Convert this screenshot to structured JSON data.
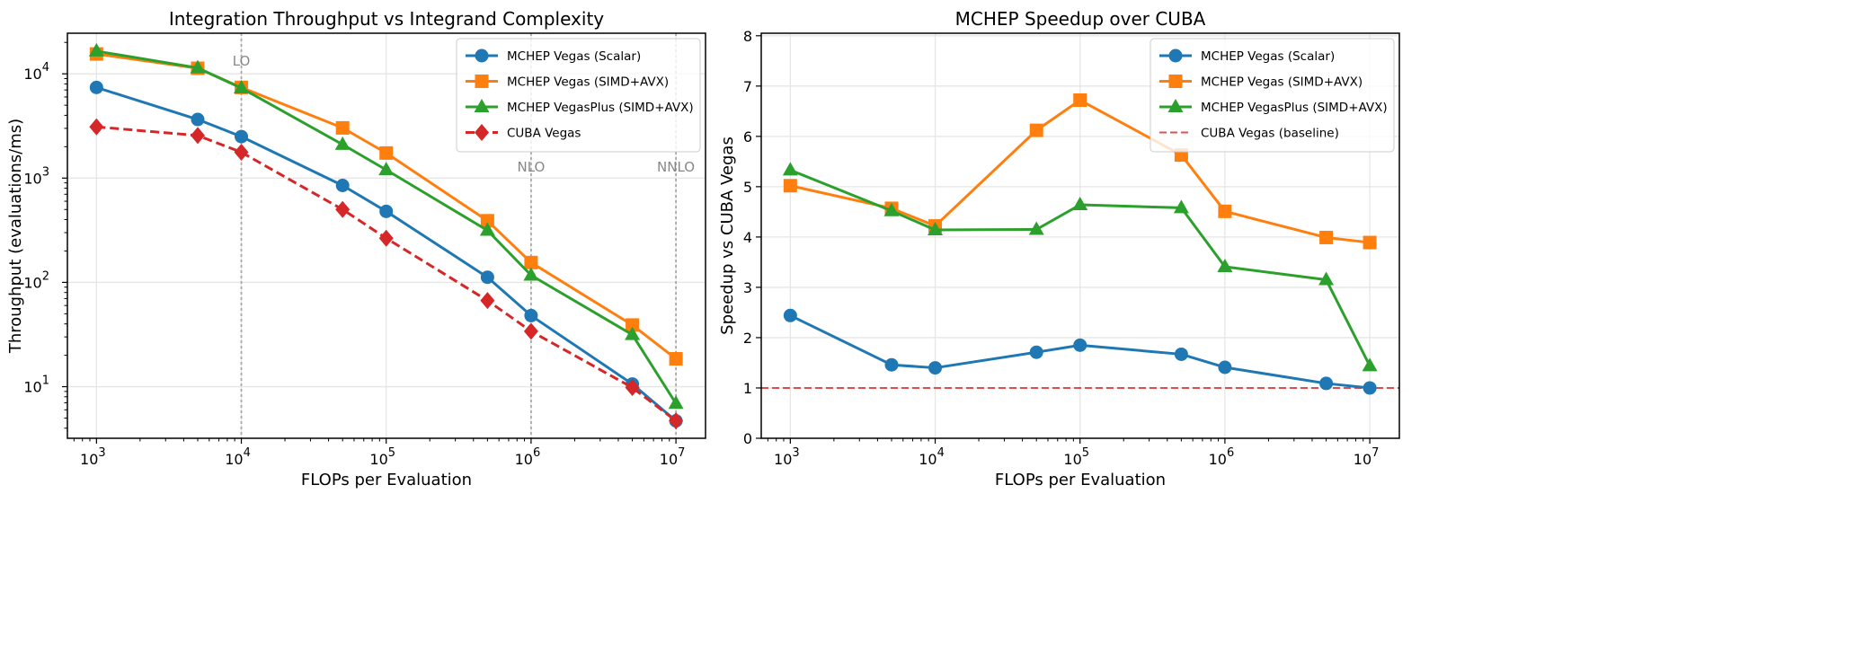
{
  "chart_data": [
    {
      "type": "line",
      "title": "Integration Throughput vs Integrand Complexity",
      "xlabel": "FLOPs per Evaluation",
      "ylabel": "Throughput (evaluations/ms)",
      "xscale": "log",
      "yscale": "log",
      "xlim": [
        630,
        16000000
      ],
      "ylim": [
        3.2,
        24500
      ],
      "xticks": [
        1000,
        10000,
        100000,
        1000000,
        10000000
      ],
      "xtick_labels": [
        [
          "10",
          "3"
        ],
        [
          "10",
          "4"
        ],
        [
          "10",
          "5"
        ],
        [
          "10",
          "6"
        ],
        [
          "10",
          "7"
        ]
      ],
      "yticks": [
        10,
        100,
        1000,
        10000
      ],
      "ytick_labels": [
        [
          "10",
          "1"
        ],
        [
          "10",
          "2"
        ],
        [
          "10",
          "3"
        ],
        [
          "10",
          "4"
        ]
      ],
      "grid": true,
      "legend": "top-right",
      "x": [
        1000,
        5000,
        10000,
        50000,
        100000,
        500000,
        1000000,
        5000000,
        10000000
      ],
      "series": [
        {
          "name": "MCHEP Vegas (Scalar)",
          "color": "#1f77b4",
          "marker": "circle",
          "dash": false,
          "values": [
            7400,
            3650,
            2500,
            850,
            480,
            112,
            48,
            10.6,
            4.7
          ]
        },
        {
          "name": "MCHEP Vegas (SIMD+AVX)",
          "color": "#ff7f0e",
          "marker": "square",
          "dash": false,
          "values": [
            15500,
            11300,
            7400,
            3030,
            1740,
            390,
            155,
            39,
            18.5
          ]
        },
        {
          "name": "MCHEP VegasPlus (SIMD+AVX)",
          "color": "#2ca02c",
          "marker": "triangle",
          "dash": false,
          "values": [
            16500,
            11400,
            7300,
            2100,
            1200,
            315,
            117,
            31.5,
            6.9
          ]
        },
        {
          "name": "CUBA Vegas",
          "color": "#d62728",
          "marker": "diamond",
          "dash": true,
          "values": [
            3100,
            2560,
            1770,
            500,
            265,
            67,
            34,
            9.8,
            4.7
          ]
        }
      ],
      "annotations": [
        {
          "text": "LO",
          "x": 10000
        },
        {
          "text": "NLO",
          "x": 1000000
        },
        {
          "text": "NNLO",
          "x": 10000000
        }
      ]
    },
    {
      "type": "line",
      "title": "MCHEP Speedup over CUBA",
      "xlabel": "FLOPs per Evaluation",
      "ylabel": "Speedup vs CUBA Vegas",
      "xscale": "log",
      "yscale": "linear",
      "xlim": [
        630,
        16000000
      ],
      "ylim": [
        0,
        8.05
      ],
      "xticks": [
        1000,
        10000,
        100000,
        1000000,
        10000000
      ],
      "xtick_labels": [
        [
          "10",
          "3"
        ],
        [
          "10",
          "4"
        ],
        [
          "10",
          "5"
        ],
        [
          "10",
          "6"
        ],
        [
          "10",
          "7"
        ]
      ],
      "yticks": [
        0,
        1,
        2,
        3,
        4,
        5,
        6,
        7,
        8
      ],
      "ytick_labels": [
        [
          "0"
        ],
        [
          "1"
        ],
        [
          "2"
        ],
        [
          "3"
        ],
        [
          "4"
        ],
        [
          "5"
        ],
        [
          "6"
        ],
        [
          "7"
        ],
        [
          "8"
        ]
      ],
      "grid": true,
      "legend": "top-right",
      "x": [
        1000,
        5000,
        10000,
        50000,
        100000,
        500000,
        1000000,
        5000000,
        10000000
      ],
      "series": [
        {
          "name": "MCHEP Vegas (Scalar)",
          "color": "#1f77b4",
          "marker": "circle",
          "dash": false,
          "values": [
            2.44,
            1.46,
            1.4,
            1.71,
            1.85,
            1.67,
            1.41,
            1.09,
            1.0
          ]
        },
        {
          "name": "MCHEP Vegas (SIMD+AVX)",
          "color": "#ff7f0e",
          "marker": "square",
          "dash": false,
          "values": [
            5.02,
            4.57,
            4.22,
            6.12,
            6.72,
            5.63,
            4.51,
            3.99,
            3.89
          ]
        },
        {
          "name": "MCHEP VegasPlus (SIMD+AVX)",
          "color": "#2ca02c",
          "marker": "triangle",
          "dash": false,
          "values": [
            5.33,
            4.52,
            4.14,
            4.15,
            4.64,
            4.58,
            3.41,
            3.15,
            1.44
          ]
        }
      ],
      "hlines": [
        {
          "name": "CUBA Vegas (baseline)",
          "y": 1,
          "color": "#d62728"
        }
      ]
    }
  ]
}
